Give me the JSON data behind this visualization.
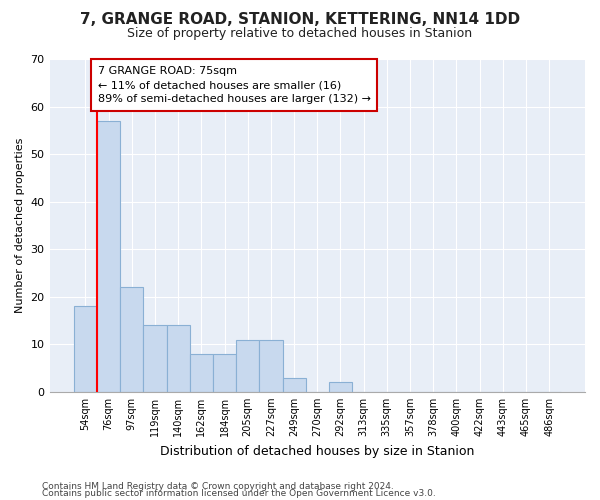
{
  "title": "7, GRANGE ROAD, STANION, KETTERING, NN14 1DD",
  "subtitle": "Size of property relative to detached houses in Stanion",
  "xlabel": "Distribution of detached houses by size in Stanion",
  "ylabel": "Number of detached properties",
  "categories": [
    "54sqm",
    "76sqm",
    "97sqm",
    "119sqm",
    "140sqm",
    "162sqm",
    "184sqm",
    "205sqm",
    "227sqm",
    "249sqm",
    "270sqm",
    "292sqm",
    "313sqm",
    "335sqm",
    "357sqm",
    "378sqm",
    "400sqm",
    "422sqm",
    "443sqm",
    "465sqm",
    "486sqm"
  ],
  "values": [
    18,
    57,
    22,
    14,
    14,
    8,
    8,
    11,
    11,
    3,
    0,
    2,
    0,
    0,
    0,
    0,
    0,
    0,
    0,
    0,
    0
  ],
  "bar_color": "#c8d9ee",
  "bar_edge_color": "#8ab0d4",
  "plot_bg_color": "#e8eef7",
  "fig_bg_color": "#ffffff",
  "grid_color": "#ffffff",
  "red_line_x": 0.5,
  "annotation_text_line1": "7 GRANGE ROAD: 75sqm",
  "annotation_text_line2": "← 11% of detached houses are smaller (16)",
  "annotation_text_line3": "89% of semi-detached houses are larger (132) →",
  "annotation_box_color": "#ffffff",
  "annotation_box_edge": "#cc0000",
  "ylim": [
    0,
    70
  ],
  "yticks": [
    0,
    10,
    20,
    30,
    40,
    50,
    60,
    70
  ],
  "footer1": "Contains HM Land Registry data © Crown copyright and database right 2024.",
  "footer2": "Contains public sector information licensed under the Open Government Licence v3.0."
}
